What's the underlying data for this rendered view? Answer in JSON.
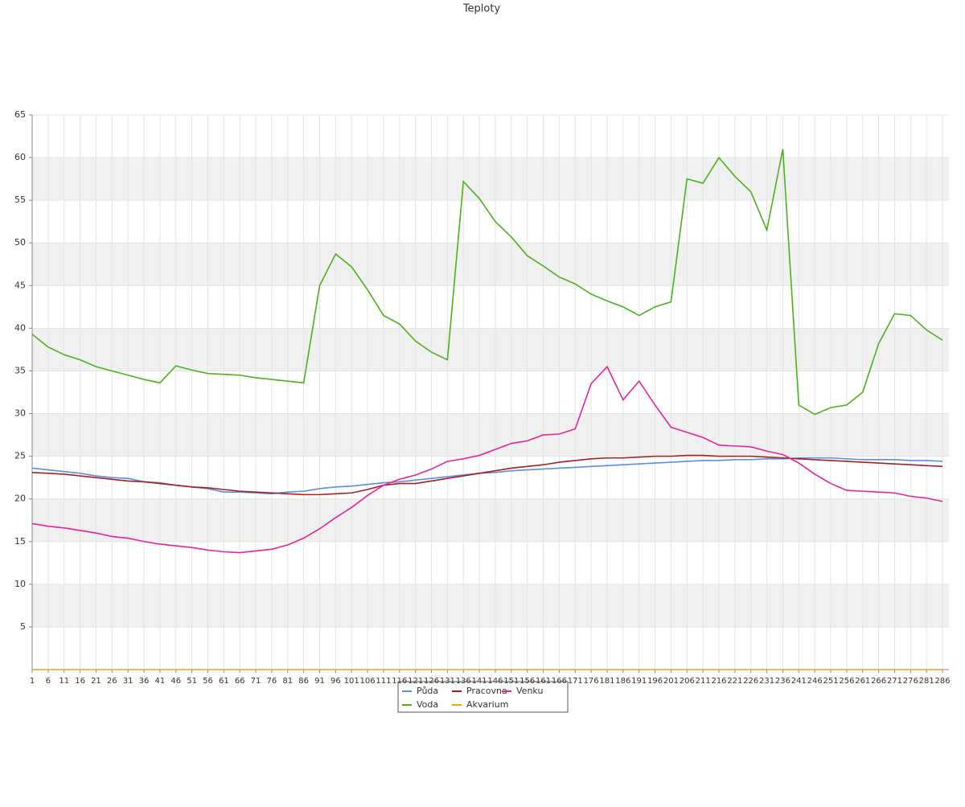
{
  "chart_data": {
    "type": "line",
    "title": "Teploty",
    "x": [
      1,
      6,
      11,
      16,
      21,
      26,
      31,
      36,
      41,
      46,
      51,
      56,
      61,
      66,
      71,
      76,
      81,
      86,
      91,
      96,
      101,
      106,
      111,
      116,
      121,
      126,
      131,
      136,
      141,
      146,
      151,
      156,
      161,
      166,
      171,
      176,
      181,
      186,
      191,
      196,
      201,
      206,
      211,
      216,
      221,
      226,
      231,
      236,
      241,
      246,
      251,
      256,
      261,
      266,
      271,
      276,
      281,
      286
    ],
    "xlim": [
      1,
      288
    ],
    "ylim": [
      0,
      65
    ],
    "yticks": [
      5,
      10,
      15,
      20,
      25,
      30,
      35,
      40,
      45,
      50,
      55,
      60,
      65
    ],
    "grid": true,
    "legend": "bottom",
    "series": [
      {
        "name": "Půda",
        "color": "#5b8de0",
        "values": [
          23.6,
          23.4,
          23.2,
          23.0,
          22.7,
          22.5,
          22.4,
          22.0,
          21.9,
          21.6,
          21.4,
          21.2,
          20.8,
          20.8,
          20.7,
          20.6,
          20.8,
          20.9,
          21.2,
          21.4,
          21.5,
          21.7,
          21.9,
          22.0,
          22.2,
          22.4,
          22.6,
          22.8,
          23.0,
          23.1,
          23.3,
          23.4,
          23.5,
          23.6,
          23.7,
          23.8,
          23.9,
          24.0,
          24.1,
          24.2,
          24.3,
          24.4,
          24.5,
          24.5,
          24.6,
          24.6,
          24.7,
          24.7,
          24.8,
          24.8,
          24.8,
          24.7,
          24.6,
          24.6,
          24.6,
          24.5,
          24.5,
          24.4
        ]
      },
      {
        "name": "Pracovna",
        "color": "#a81e1e",
        "values": [
          23.1,
          23.0,
          22.9,
          22.7,
          22.5,
          22.3,
          22.1,
          22.0,
          21.8,
          21.6,
          21.4,
          21.3,
          21.1,
          20.9,
          20.8,
          20.7,
          20.6,
          20.5,
          20.5,
          20.6,
          20.7,
          21.1,
          21.6,
          21.8,
          21.8,
          22.1,
          22.4,
          22.7,
          23.0,
          23.3,
          23.6,
          23.8,
          24.0,
          24.3,
          24.5,
          24.7,
          24.8,
          24.8,
          24.9,
          25.0,
          25.0,
          25.1,
          25.1,
          25.0,
          25.0,
          25.0,
          24.9,
          24.8,
          24.7,
          24.6,
          24.5,
          24.4,
          24.3,
          24.2,
          24.1,
          24.0,
          23.9,
          23.8
        ]
      },
      {
        "name": "Venku",
        "color": "#e8239a",
        "values": [
          17.1,
          16.8,
          16.6,
          16.3,
          16.0,
          15.6,
          15.4,
          15.0,
          14.7,
          14.5,
          14.3,
          14.0,
          13.8,
          13.7,
          13.9,
          14.1,
          14.6,
          15.4,
          16.5,
          17.8,
          19.0,
          20.4,
          21.6,
          22.3,
          22.8,
          23.5,
          24.4,
          24.7,
          25.1,
          25.8,
          26.5,
          26.8,
          27.5,
          27.6,
          28.2,
          33.5,
          35.5,
          31.6,
          33.8,
          31.0,
          28.4,
          27.8,
          27.2,
          26.3,
          26.2,
          26.1,
          25.6,
          25.2,
          24.2,
          22.9,
          21.8,
          21.0,
          20.9,
          20.8,
          20.7,
          20.3,
          20.1,
          19.7
        ]
      },
      {
        "name": "Voda",
        "color": "#4cb21a",
        "values": [
          39.3,
          37.8,
          36.9,
          36.3,
          35.5,
          35.0,
          34.5,
          34.0,
          33.6,
          35.6,
          35.1,
          34.7,
          34.6,
          34.5,
          34.2,
          34.0,
          33.8,
          33.6,
          45.0,
          48.7,
          47.2,
          44.5,
          41.5,
          40.5,
          38.5,
          37.2,
          36.3,
          57.2,
          55.2,
          52.5,
          50.7,
          48.5,
          47.3,
          46.0,
          45.2,
          44.0,
          43.2,
          42.5,
          41.5,
          42.5,
          43.1,
          57.5,
          57.0,
          60.0,
          57.8,
          56.0,
          51.5,
          61.0,
          31.0,
          29.9,
          30.7,
          31.0,
          32.5,
          38.2,
          41.7,
          41.5,
          39.8,
          38.6
        ]
      },
      {
        "name": "Akvarium",
        "color": "#e8a317",
        "values": [
          0,
          0,
          0,
          0,
          0,
          0,
          0,
          0,
          0,
          0,
          0,
          0,
          0,
          0,
          0,
          0,
          0,
          0,
          0,
          0,
          0,
          0,
          0,
          0,
          0,
          0,
          0,
          0,
          0,
          0,
          0,
          0,
          0,
          0,
          0,
          0,
          0,
          0,
          0,
          0,
          0,
          0,
          0,
          0,
          0,
          0,
          0,
          0,
          0,
          0,
          0,
          0,
          0,
          0,
          0,
          0,
          0,
          0
        ]
      }
    ]
  }
}
